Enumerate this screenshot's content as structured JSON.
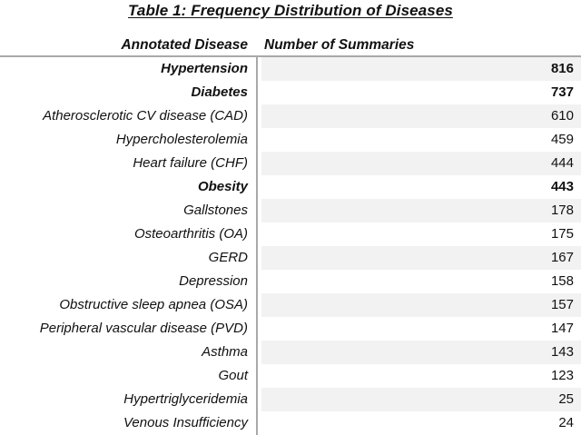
{
  "title": "Table 1: Frequency Distribution of Diseases",
  "table": {
    "columns": {
      "disease": "Annotated Disease",
      "count": "Number of Summaries"
    },
    "rows": [
      {
        "disease": "Hypertension",
        "count": "816",
        "bold": true
      },
      {
        "disease": "Diabetes",
        "count": "737",
        "bold": true
      },
      {
        "disease": "Atherosclerotic CV disease (CAD)",
        "count": "610",
        "bold": false
      },
      {
        "disease": "Hypercholesterolemia",
        "count": "459",
        "bold": false
      },
      {
        "disease": "Heart failure (CHF)",
        "count": "444",
        "bold": false
      },
      {
        "disease": "Obesity",
        "count": "443",
        "bold": true
      },
      {
        "disease": "Gallstones",
        "count": "178",
        "bold": false
      },
      {
        "disease": "Osteoarthritis (OA)",
        "count": "175",
        "bold": false
      },
      {
        "disease": "GERD",
        "count": "167",
        "bold": false
      },
      {
        "disease": "Depression",
        "count": "158",
        "bold": false
      },
      {
        "disease": "Obstructive sleep apnea (OSA)",
        "count": "157",
        "bold": false
      },
      {
        "disease": "Peripheral vascular disease (PVD)",
        "count": "147",
        "bold": false
      },
      {
        "disease": "Asthma",
        "count": "143",
        "bold": false
      },
      {
        "disease": "Gout",
        "count": "123",
        "bold": false
      },
      {
        "disease": "Hypertriglyceridemia",
        "count": "25",
        "bold": false
      },
      {
        "disease": "Venous Insufficiency",
        "count": "24",
        "bold": false
      }
    ]
  },
  "colors": {
    "rule_gray": "#a9a9a9",
    "row_shade": "#f2f2f2",
    "text": "#111111",
    "background": "#ffffff"
  },
  "chart_data": {
    "type": "table",
    "title": "Table 1: Frequency Distribution of Diseases",
    "columns": [
      "Annotated Disease",
      "Number of Summaries"
    ],
    "rows": [
      [
        "Hypertension",
        816
      ],
      [
        "Diabetes",
        737
      ],
      [
        "Atherosclerotic CV disease (CAD)",
        610
      ],
      [
        "Hypercholesterolemia",
        459
      ],
      [
        "Heart failure (CHF)",
        444
      ],
      [
        "Obesity",
        443
      ],
      [
        "Gallstones",
        178
      ],
      [
        "Osteoarthritis (OA)",
        175
      ],
      [
        "GERD",
        167
      ],
      [
        "Depression",
        158
      ],
      [
        "Obstructive sleep apnea (OSA)",
        157
      ],
      [
        "Peripheral vascular disease (PVD)",
        147
      ],
      [
        "Asthma",
        143
      ],
      [
        "Gout",
        123
      ],
      [
        "Hypertriglyceridemia",
        25
      ],
      [
        "Venous Insufficiency",
        24
      ]
    ]
  }
}
